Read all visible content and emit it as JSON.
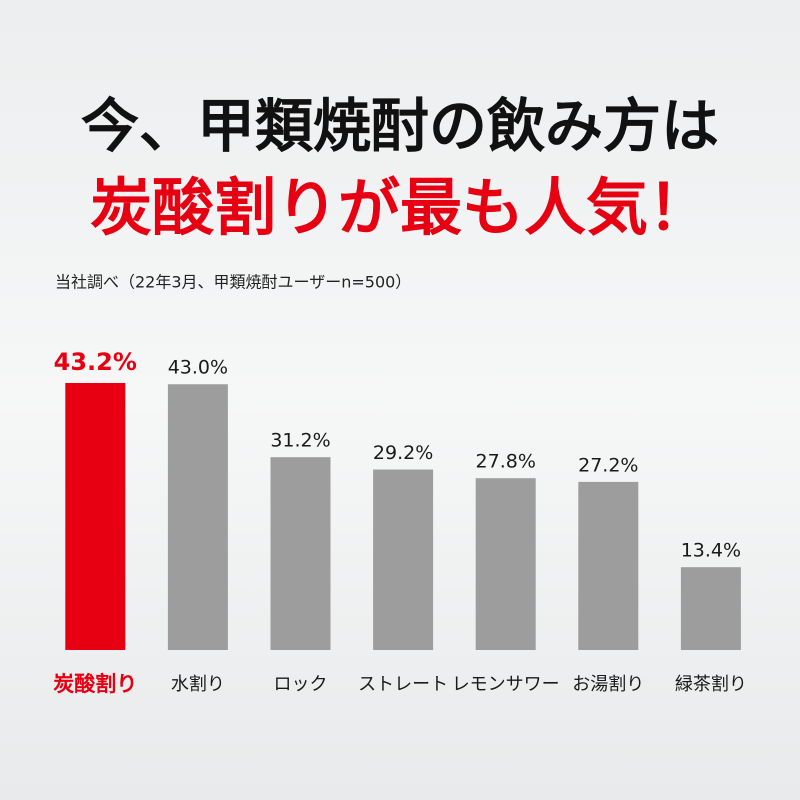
{
  "chart_data": {
    "type": "bar",
    "title": "今、甲類焼酎の飲み方は",
    "subtitle": "炭酸割りが最も人気！",
    "note": "当社調べ（22年3月、甲類焼酎ユーザーn=500）",
    "categories": [
      "炭酸割り",
      "水割り",
      "ロック",
      "ストレート",
      "レモンサワー",
      "お湯割り",
      "緑茶割り"
    ],
    "values": [
      43.2,
      43.0,
      31.2,
      29.2,
      27.8,
      27.2,
      13.4
    ],
    "value_labels": [
      "43.2%",
      "43.0%",
      "31.2%",
      "29.2%",
      "27.8%",
      "27.2%",
      "13.4%"
    ],
    "colors": [
      "#e60012",
      "#9d9d9d",
      "#9d9d9d",
      "#9d9d9d",
      "#9d9d9d",
      "#9d9d9d",
      "#9d9d9d"
    ],
    "label_colors": [
      "#e60012",
      "#1a1a1a",
      "#1a1a1a",
      "#1a1a1a",
      "#1a1a1a",
      "#1a1a1a",
      "#1a1a1a"
    ]
  }
}
